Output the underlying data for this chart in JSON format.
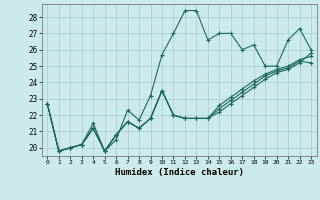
{
  "xlabel": "Humidex (Indice chaleur)",
  "bg_color": "#cceaea",
  "grid_color": "#aacccc",
  "line_color": "#1a6b5a",
  "xlim": [
    -0.5,
    23.5
  ],
  "ylim": [
    19.5,
    28.8
  ],
  "yticks": [
    20,
    21,
    22,
    23,
    24,
    25,
    26,
    27,
    28
  ],
  "xtick_labels": [
    "0",
    "1",
    "2",
    "3",
    "4",
    "5",
    "6",
    "7",
    "8",
    "9",
    "10",
    "11",
    "12",
    "13",
    "14",
    "15",
    "16",
    "17",
    "18",
    "19",
    "20",
    "21",
    "22",
    "23"
  ],
  "series": [
    [
      22.7,
      19.8,
      20.0,
      20.2,
      21.5,
      19.8,
      20.5,
      22.3,
      21.7,
      23.2,
      25.7,
      27.0,
      28.4,
      28.4,
      26.6,
      27.0,
      27.0,
      26.0,
      26.3,
      25.0,
      25.0,
      26.6,
      27.3,
      26.0
    ],
    [
      22.7,
      19.8,
      20.0,
      20.2,
      21.2,
      19.8,
      20.8,
      21.6,
      21.2,
      21.8,
      23.5,
      22.0,
      21.8,
      21.8,
      21.8,
      22.2,
      22.7,
      23.2,
      23.7,
      24.2,
      24.6,
      24.8,
      25.2,
      25.8
    ],
    [
      22.7,
      19.8,
      20.0,
      20.2,
      21.2,
      19.8,
      20.8,
      21.6,
      21.2,
      21.8,
      23.5,
      22.0,
      21.8,
      21.8,
      21.8,
      22.4,
      22.9,
      23.4,
      23.9,
      24.4,
      24.7,
      24.9,
      25.3,
      25.2
    ],
    [
      22.7,
      19.8,
      20.0,
      20.2,
      21.2,
      19.8,
      20.8,
      21.6,
      21.2,
      21.8,
      23.5,
      22.0,
      21.8,
      21.8,
      21.8,
      22.6,
      23.1,
      23.6,
      24.1,
      24.5,
      24.8,
      25.0,
      25.4,
      25.6
    ]
  ]
}
